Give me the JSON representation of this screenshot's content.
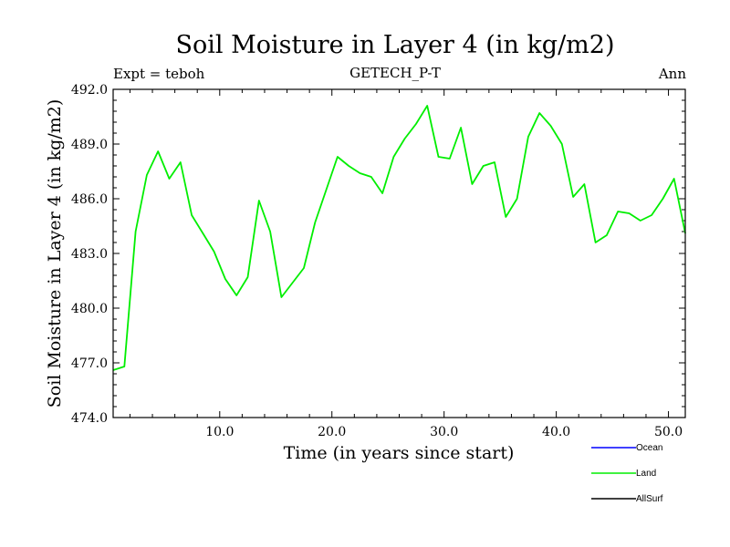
{
  "chart_data": {
    "type": "line",
    "title": "Soil Moisture in Layer 4 (in kg/m2)",
    "subtitle": "GETECH_P-T",
    "left_label": "Expt = teboh",
    "right_label": "Ann",
    "xlabel": "Time (in years since start)",
    "ylabel": "Soil Moisture in Layer 4 (in kg/m2)",
    "xlim": [
      0.5,
      51.5
    ],
    "ylim": [
      474.0,
      492.0
    ],
    "x_ticks": [
      10,
      20,
      30,
      40,
      50
    ],
    "x_tick_labels": [
      "10.0",
      "20.0",
      "30.0",
      "40.0",
      "50.0"
    ],
    "y_ticks": [
      474,
      477,
      480,
      483,
      486,
      489,
      492
    ],
    "y_tick_labels": [
      "474.0",
      "477.0",
      "480.0",
      "483.0",
      "486.0",
      "489.0",
      "492.0"
    ],
    "legend": [
      {
        "name": "Ocean",
        "color": "#0000ff"
      },
      {
        "name": "Land",
        "color": "#00ee00"
      },
      {
        "name": "AllSurf",
        "color": "#000000"
      }
    ],
    "series": [
      {
        "name": "Land",
        "color": "#00ee00",
        "x": [
          0.5,
          1.5,
          2.5,
          3.5,
          4.5,
          5.5,
          6.5,
          7.5,
          8.5,
          9.5,
          10.5,
          11.5,
          12.5,
          13.5,
          14.5,
          15.5,
          16.5,
          17.5,
          18.5,
          19.5,
          20.5,
          21.5,
          22.5,
          23.5,
          24.5,
          25.5,
          26.5,
          27.5,
          28.5,
          29.5,
          30.5,
          31.5,
          32.5,
          33.5,
          34.5,
          35.5,
          36.5,
          37.5,
          38.5,
          39.5,
          40.5,
          41.5,
          42.5,
          43.5,
          44.5,
          45.5,
          46.5,
          47.5,
          48.5,
          49.5,
          50.5,
          51.5
        ],
        "values": [
          476.6,
          476.8,
          484.2,
          487.3,
          488.6,
          487.1,
          488.0,
          485.1,
          484.1,
          483.1,
          481.6,
          480.7,
          481.7,
          485.9,
          484.2,
          480.6,
          481.4,
          482.2,
          484.7,
          486.5,
          488.3,
          487.8,
          487.4,
          487.2,
          486.3,
          488.3,
          489.3,
          490.1,
          491.1,
          488.3,
          488.2,
          489.9,
          486.8,
          487.8,
          488.0,
          485.0,
          486.0,
          489.4,
          490.7,
          490.0,
          489.0,
          486.1,
          486.8,
          483.6,
          484.0,
          485.3,
          485.2,
          484.8,
          485.1,
          486.0,
          487.1,
          484.1
        ]
      }
    ]
  }
}
